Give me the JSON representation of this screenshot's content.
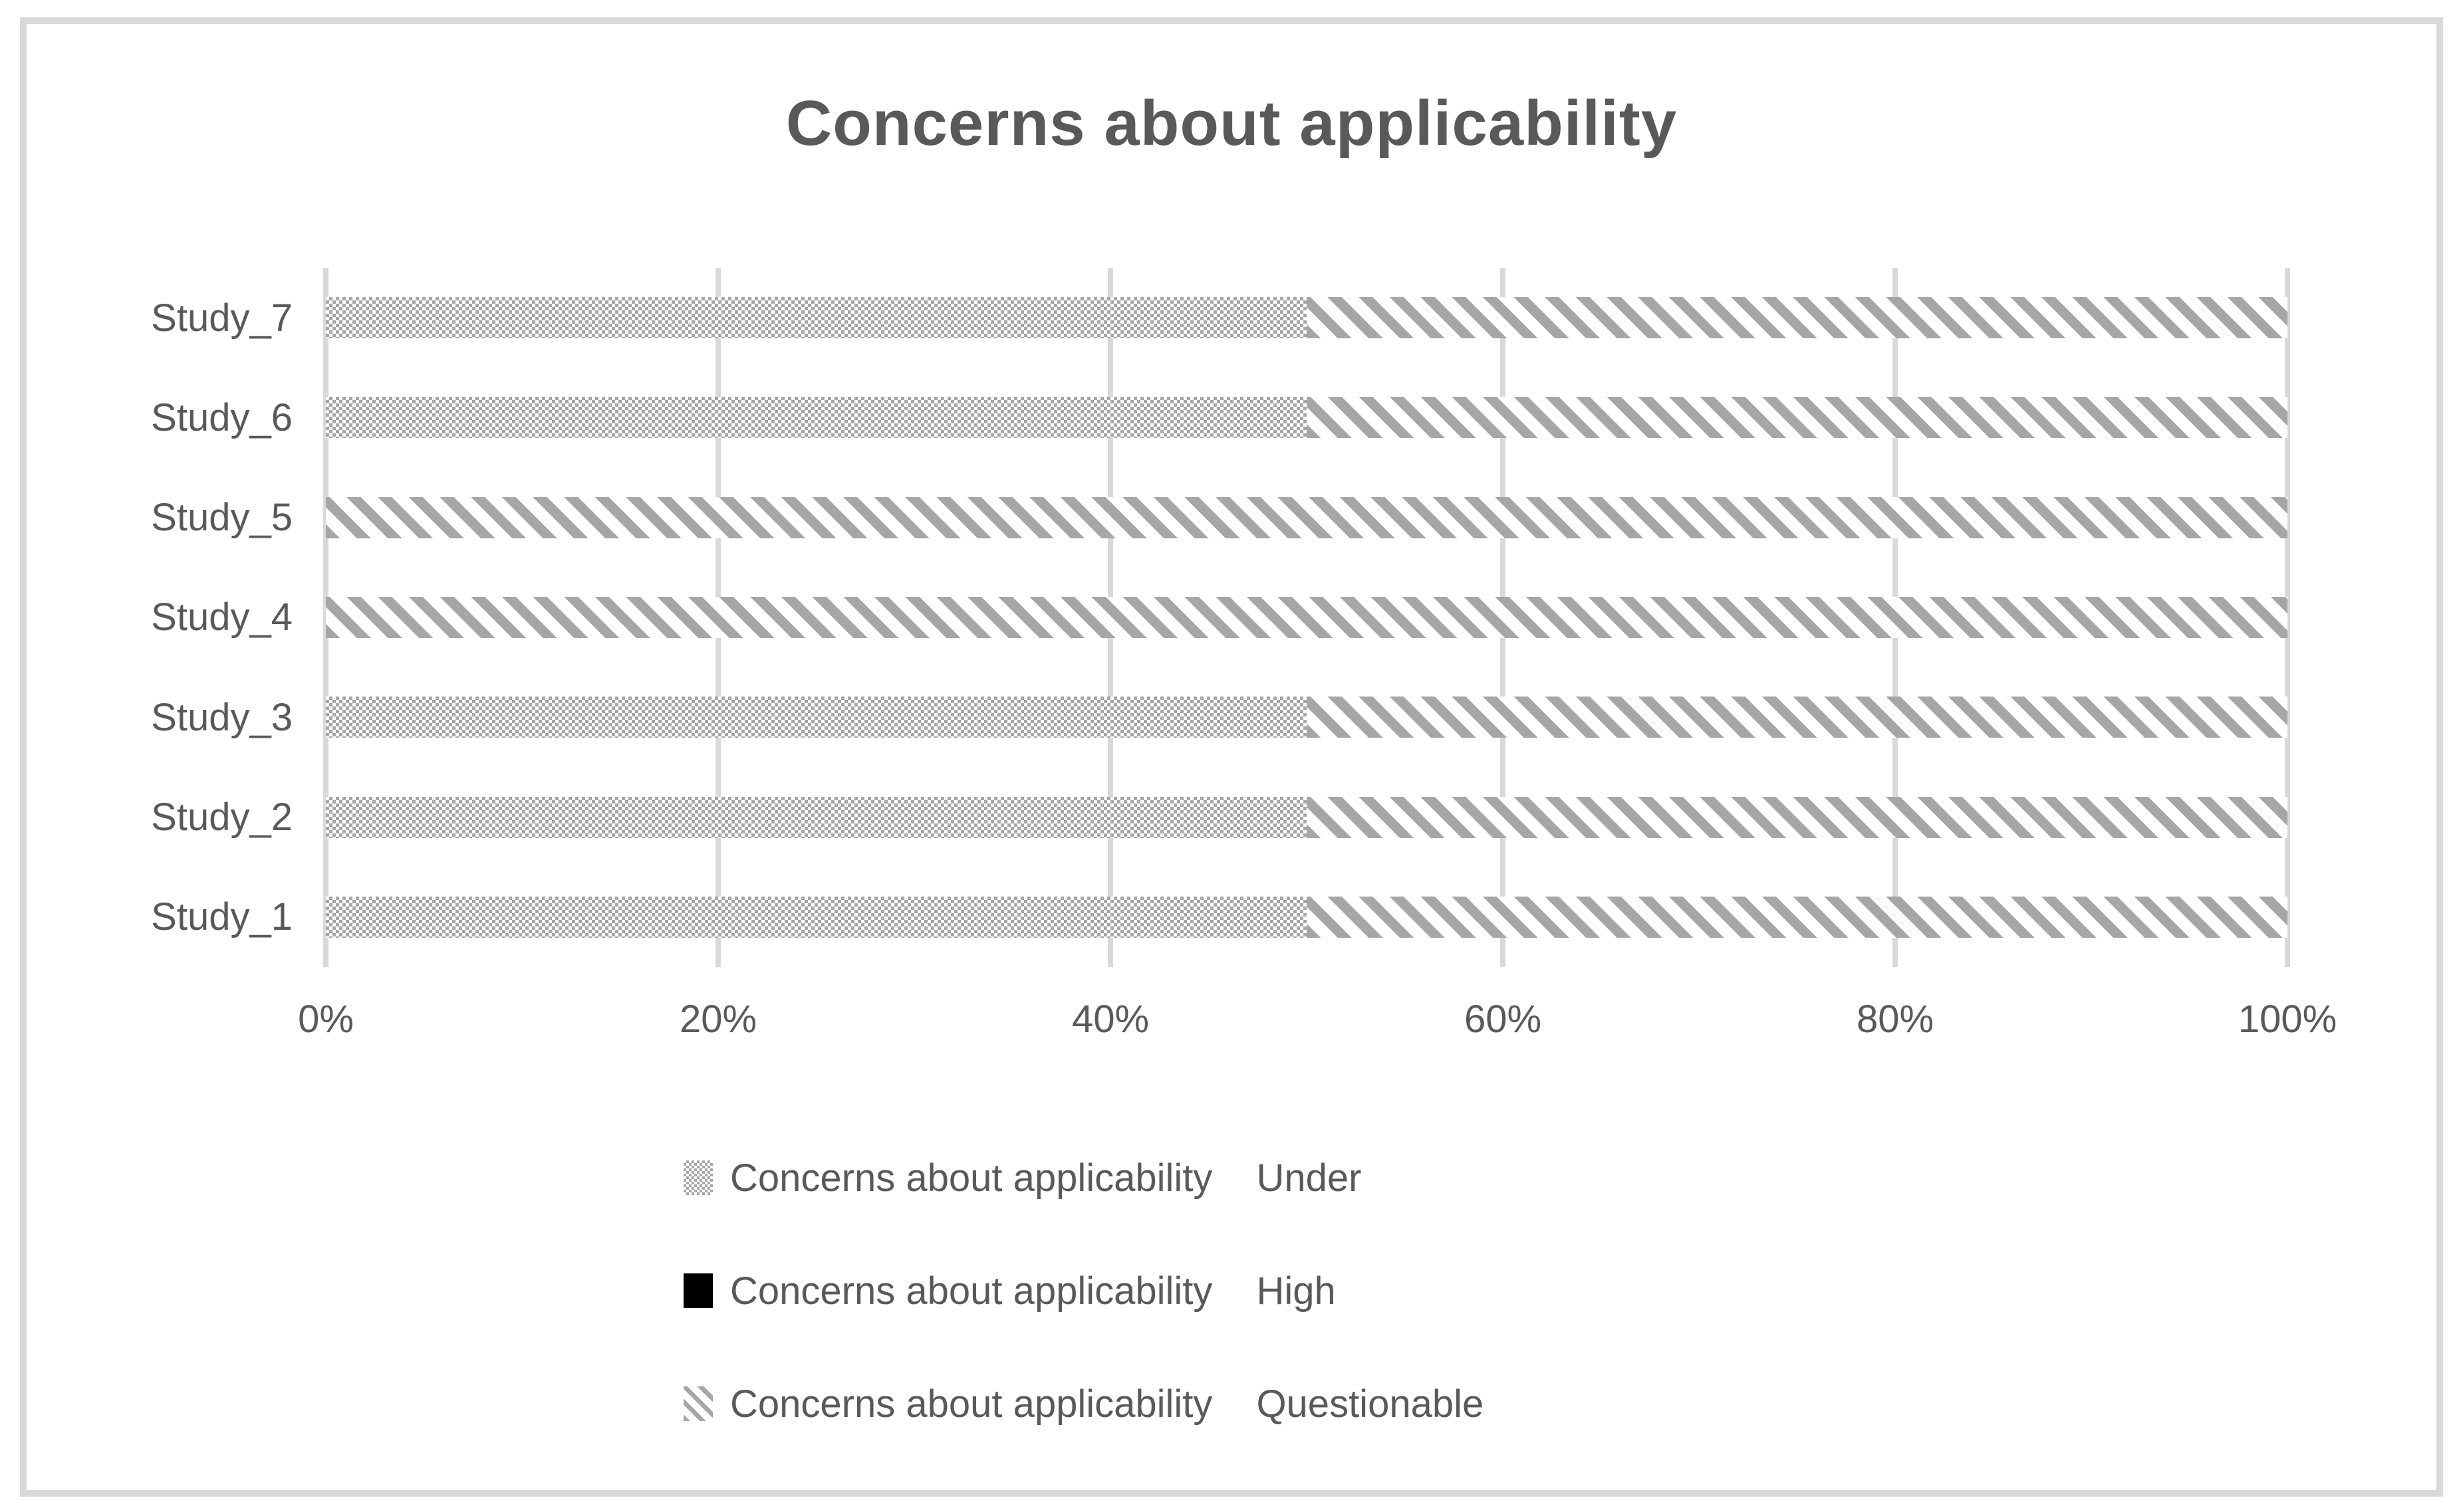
{
  "title": "Concerns about applicability",
  "chart_data": {
    "type": "bar",
    "orientation": "horizontal",
    "stacked": true,
    "title": "Concerns about applicability",
    "categories_top_to_bottom": [
      "Study_7",
      "Study_6",
      "Study_5",
      "Study_4",
      "Study_3",
      "Study_2",
      "Study_1"
    ],
    "x_tick_labels": [
      "0%",
      "20%",
      "40%",
      "60%",
      "80%",
      "100%"
    ],
    "xlim": [
      0,
      100
    ],
    "x_unit": "percent",
    "gridlines": true,
    "legend_position": "bottom",
    "series": [
      {
        "name": "Concerns about applicability",
        "level": "Under",
        "pattern": "dotted-checker",
        "color": "#a6a6a6",
        "values": [
          50,
          50,
          0,
          0,
          50,
          50,
          50
        ]
      },
      {
        "name": "Concerns about applicability",
        "level": "High",
        "pattern": "solid-black",
        "color": "#000000",
        "values": [
          0,
          0,
          0,
          0,
          0,
          0,
          0
        ]
      },
      {
        "name": "Concerns about applicability",
        "level": "Questionable",
        "pattern": "diagonal-hatch",
        "color": "#a6a6a6",
        "values": [
          50,
          50,
          100,
          100,
          50,
          50,
          50
        ]
      }
    ]
  },
  "legend": {
    "entries": [
      {
        "series": "Concerns about applicability",
        "level": "Under",
        "swatch": "dotted-checker"
      },
      {
        "series": "Concerns about applicability",
        "level": "High",
        "swatch": "solid-black"
      },
      {
        "series": "Concerns about applicability",
        "level": "Questionable",
        "swatch": "diagonal-hatch"
      }
    ]
  },
  "colors": {
    "text": "#595959",
    "grid": "#d9d9d9",
    "frame_border": "#d9d9d9",
    "pattern_gray": "#a6a6a6",
    "high_black": "#000000",
    "background": "#ffffff"
  }
}
